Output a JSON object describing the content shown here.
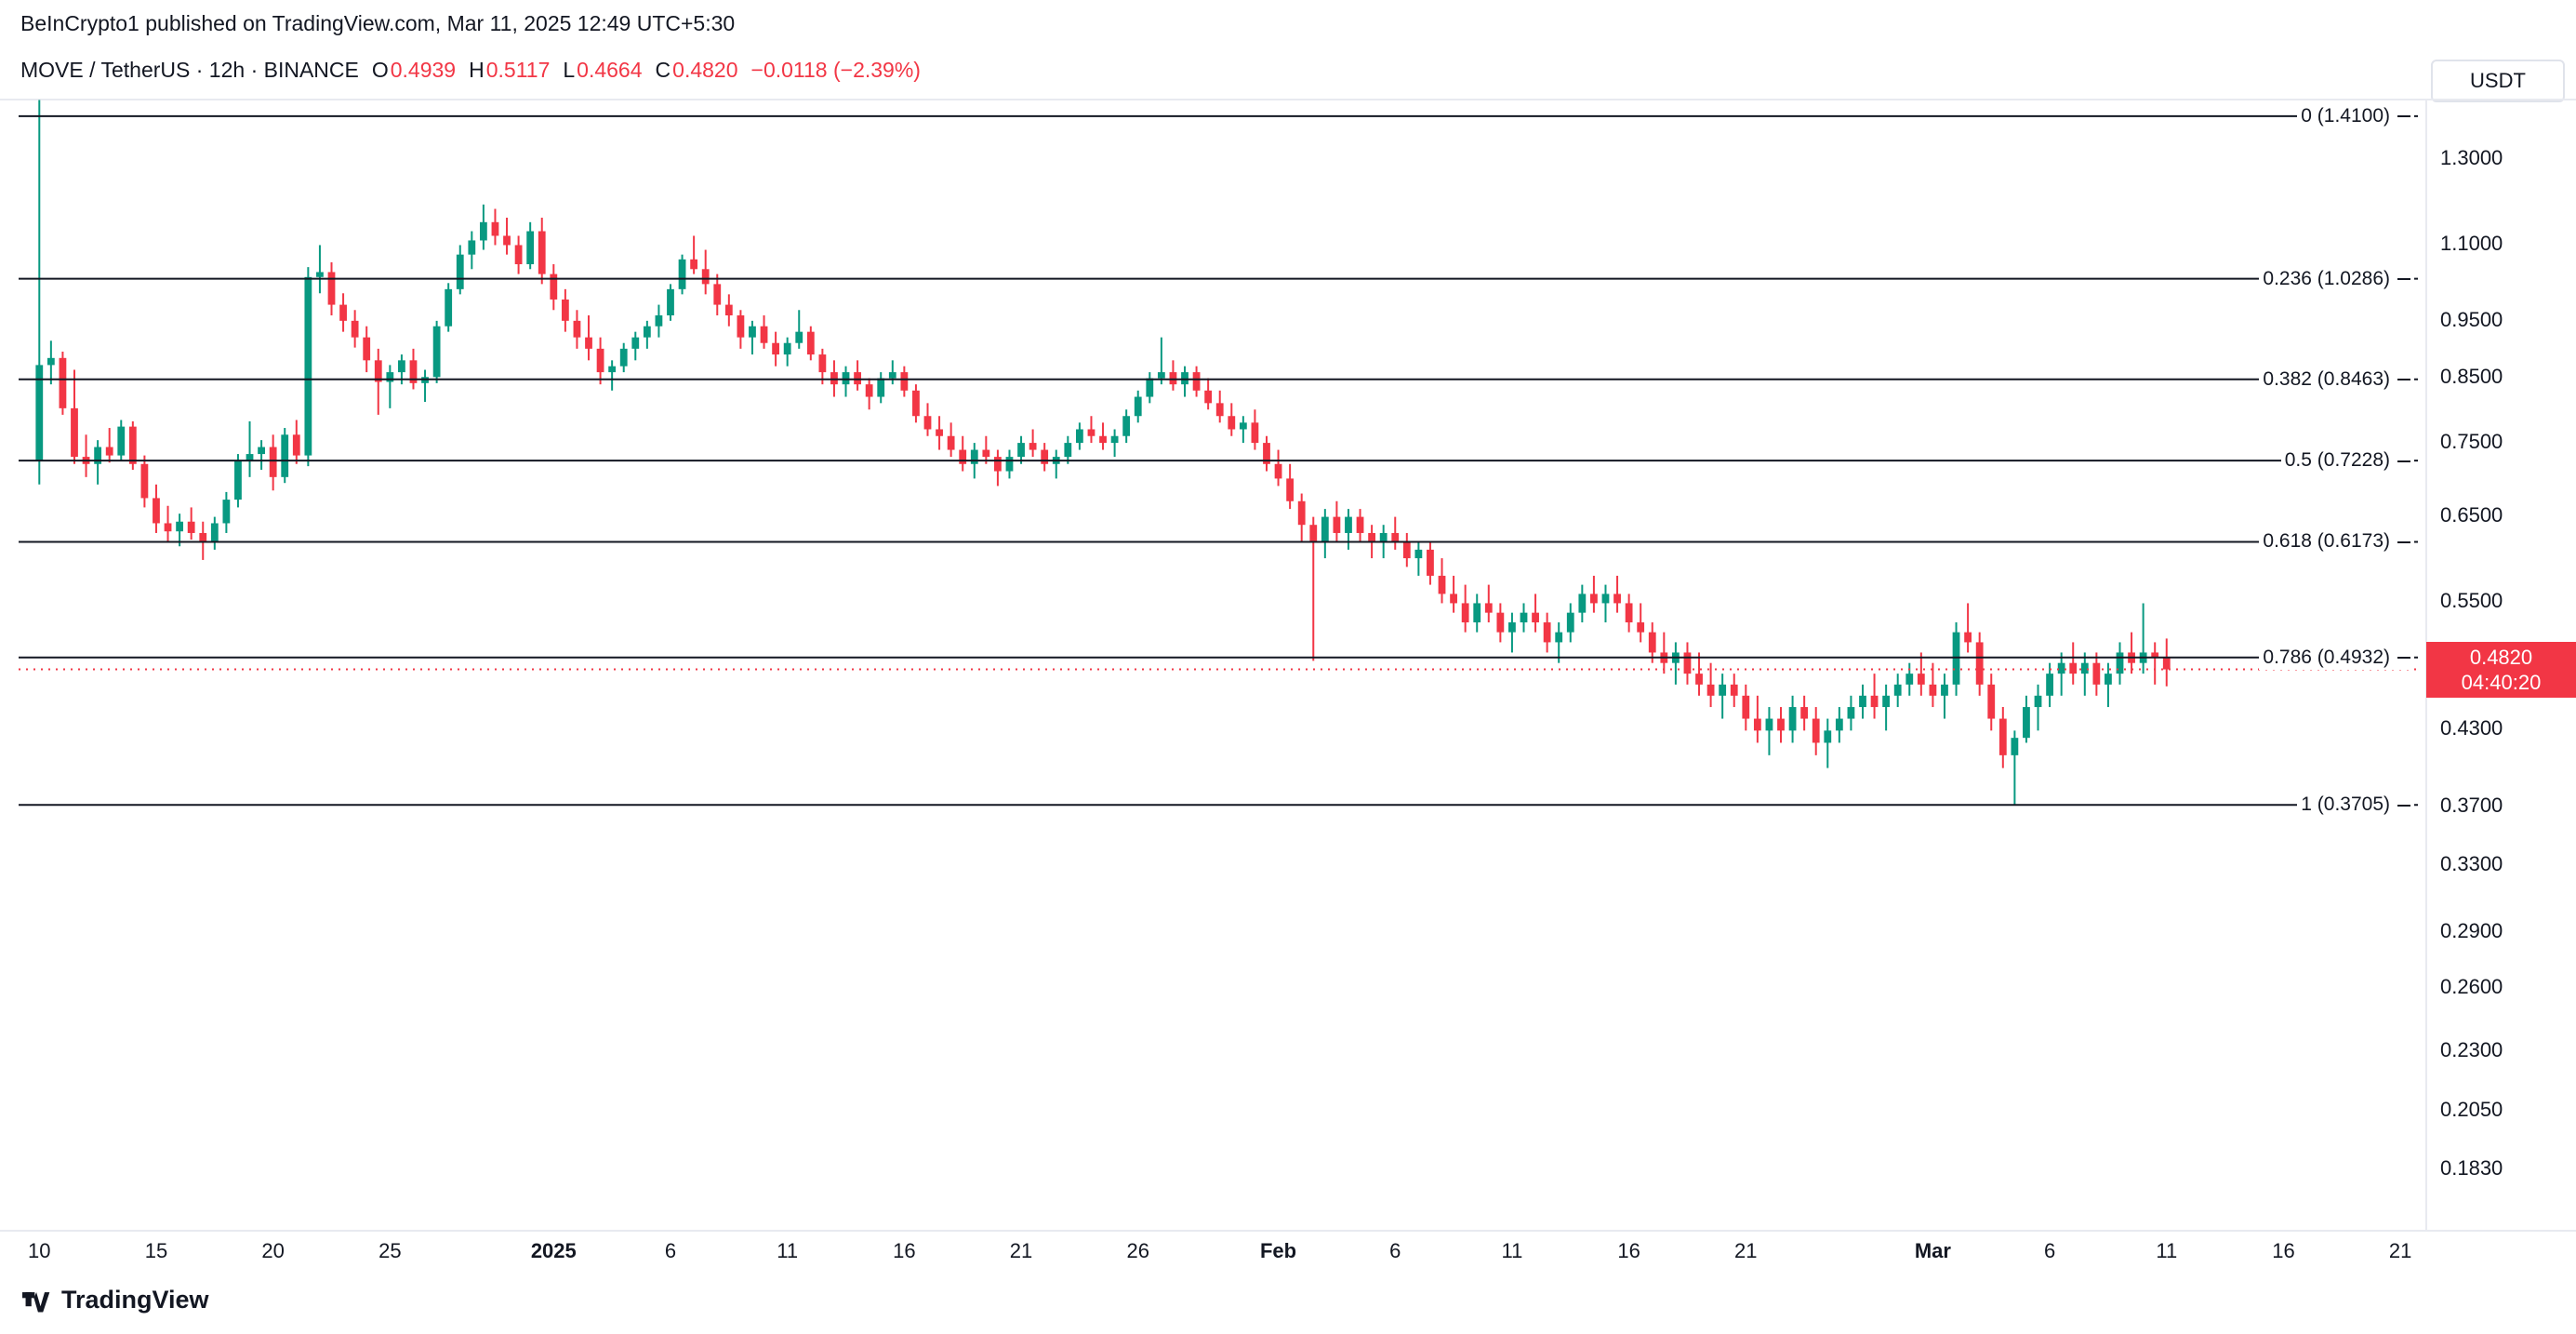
{
  "attribution": "BeInCrypto1 published on TradingView.com, Mar 11, 2025 12:49 UTC+5:30",
  "legend": {
    "title": "MOVE / TetherUS · 12h · BINANCE",
    "o_label": "O",
    "o_value": "0.4939",
    "h_label": "H",
    "h_value": "0.5117",
    "l_label": "L",
    "l_value": "0.4664",
    "c_label": "C",
    "c_value": "0.4820",
    "change": "−0.0118 (−2.39%)"
  },
  "price_axis": {
    "currency": "USDT",
    "current_price": "0.4820",
    "countdown": "04:40:20"
  },
  "footer": {
    "brand": "TradingView"
  },
  "colors": {
    "up": "#089981",
    "down": "#F23645",
    "text": "#131722",
    "fib_line": "#131722",
    "current_price": "#F23645",
    "border": "#E0E3EB"
  },
  "chart_data": {
    "type": "candlestick",
    "title": "MOVE / TetherUS · 12h · BINANCE",
    "scale": "log",
    "y_domain": [
      0.166,
      1.557
    ],
    "first_candle_date": "2024-12-10",
    "interval": "12h",
    "x_slots": 204,
    "current_price": 0.482,
    "y_ticks": [
      {
        "label": "1.3000",
        "value": 1.3
      },
      {
        "label": "1.1000",
        "value": 1.1
      },
      {
        "label": "0.9500",
        "value": 0.95
      },
      {
        "label": "0.8500",
        "value": 0.85
      },
      {
        "label": "0.7500",
        "value": 0.75
      },
      {
        "label": "0.6500",
        "value": 0.65
      },
      {
        "label": "0.5500",
        "value": 0.55
      },
      {
        "label": "0.4300",
        "value": 0.43
      },
      {
        "label": "0.3700",
        "value": 0.37
      },
      {
        "label": "0.3300",
        "value": 0.33
      },
      {
        "label": "0.2900",
        "value": 0.29
      },
      {
        "label": "0.2600",
        "value": 0.26
      },
      {
        "label": "0.2300",
        "value": 0.23
      },
      {
        "label": "0.2050",
        "value": 0.205
      },
      {
        "label": "0.1830",
        "value": 0.183
      }
    ],
    "x_ticks": [
      {
        "label": "10",
        "slot": 0,
        "bold": false
      },
      {
        "label": "15",
        "slot": 10,
        "bold": false
      },
      {
        "label": "20",
        "slot": 20,
        "bold": false
      },
      {
        "label": "25",
        "slot": 30,
        "bold": false
      },
      {
        "label": "2025",
        "slot": 44,
        "bold": true
      },
      {
        "label": "6",
        "slot": 54,
        "bold": false
      },
      {
        "label": "11",
        "slot": 64,
        "bold": false
      },
      {
        "label": "16",
        "slot": 74,
        "bold": false
      },
      {
        "label": "21",
        "slot": 84,
        "bold": false
      },
      {
        "label": "26",
        "slot": 94,
        "bold": false
      },
      {
        "label": "Feb",
        "slot": 106,
        "bold": true
      },
      {
        "label": "6",
        "slot": 116,
        "bold": false
      },
      {
        "label": "11",
        "slot": 126,
        "bold": false
      },
      {
        "label": "16",
        "slot": 136,
        "bold": false
      },
      {
        "label": "21",
        "slot": 146,
        "bold": false
      },
      {
        "label": "Mar",
        "slot": 162,
        "bold": true
      },
      {
        "label": "6",
        "slot": 172,
        "bold": false
      },
      {
        "label": "11",
        "slot": 182,
        "bold": false
      },
      {
        "label": "16",
        "slot": 192,
        "bold": false
      },
      {
        "label": "21",
        "slot": 202,
        "bold": false
      }
    ],
    "fib_levels": [
      {
        "label": "0 (1.4100)",
        "value": 1.41
      },
      {
        "label": "0.236 (1.0286)",
        "value": 1.0286
      },
      {
        "label": "0.382 (0.8463)",
        "value": 0.8463
      },
      {
        "label": "0.5 (0.7228)",
        "value": 0.7228
      },
      {
        "label": "0.618 (0.6173)",
        "value": 0.6173
      },
      {
        "label": "0.786 (0.4932)",
        "value": 0.4932
      },
      {
        "label": "1 (0.3705)",
        "value": 0.3705
      }
    ],
    "candles": [
      [
        0.723,
        1.455,
        0.69,
        0.87
      ],
      [
        0.87,
        0.912,
        0.838,
        0.882
      ],
      [
        0.882,
        0.893,
        0.79,
        0.8
      ],
      [
        0.8,
        0.862,
        0.718,
        0.728
      ],
      [
        0.728,
        0.76,
        0.7,
        0.718
      ],
      [
        0.718,
        0.752,
        0.69,
        0.742
      ],
      [
        0.742,
        0.77,
        0.72,
        0.73
      ],
      [
        0.73,
        0.782,
        0.722,
        0.772
      ],
      [
        0.772,
        0.78,
        0.71,
        0.718
      ],
      [
        0.718,
        0.73,
        0.66,
        0.672
      ],
      [
        0.672,
        0.69,
        0.628,
        0.64
      ],
      [
        0.64,
        0.662,
        0.618,
        0.63
      ],
      [
        0.63,
        0.652,
        0.612,
        0.642
      ],
      [
        0.642,
        0.66,
        0.62,
        0.628
      ],
      [
        0.628,
        0.642,
        0.596,
        0.618
      ],
      [
        0.618,
        0.648,
        0.608,
        0.64
      ],
      [
        0.64,
        0.68,
        0.628,
        0.67
      ],
      [
        0.67,
        0.732,
        0.66,
        0.722
      ],
      [
        0.722,
        0.78,
        0.7,
        0.732
      ],
      [
        0.732,
        0.752,
        0.71,
        0.742
      ],
      [
        0.742,
        0.76,
        0.682,
        0.7
      ],
      [
        0.7,
        0.77,
        0.692,
        0.76
      ],
      [
        0.76,
        0.782,
        0.718,
        0.73
      ],
      [
        0.73,
        1.052,
        0.715,
        1.032
      ],
      [
        1.032,
        1.098,
        1.0,
        1.042
      ],
      [
        1.042,
        1.062,
        0.958,
        0.978
      ],
      [
        0.978,
        1.0,
        0.928,
        0.948
      ],
      [
        0.948,
        0.968,
        0.9,
        0.918
      ],
      [
        0.918,
        0.938,
        0.858,
        0.878
      ],
      [
        0.878,
        0.898,
        0.79,
        0.842
      ],
      [
        0.842,
        0.87,
        0.8,
        0.858
      ],
      [
        0.858,
        0.888,
        0.838,
        0.878
      ],
      [
        0.878,
        0.898,
        0.83,
        0.84
      ],
      [
        0.84,
        0.862,
        0.81,
        0.85
      ],
      [
        0.85,
        0.948,
        0.84,
        0.938
      ],
      [
        0.938,
        1.02,
        0.928,
        1.008
      ],
      [
        1.008,
        1.098,
        0.998,
        1.078
      ],
      [
        1.078,
        1.128,
        1.048,
        1.108
      ],
      [
        1.108,
        1.188,
        1.088,
        1.148
      ],
      [
        1.148,
        1.178,
        1.098,
        1.118
      ],
      [
        1.118,
        1.158,
        1.078,
        1.098
      ],
      [
        1.098,
        1.118,
        1.038,
        1.058
      ],
      [
        1.058,
        1.148,
        1.048,
        1.128
      ],
      [
        1.128,
        1.158,
        1.018,
        1.038
      ],
      [
        1.038,
        1.058,
        0.968,
        0.988
      ],
      [
        0.988,
        1.008,
        0.928,
        0.948
      ],
      [
        0.948,
        0.968,
        0.898,
        0.918
      ],
      [
        0.918,
        0.958,
        0.878,
        0.898
      ],
      [
        0.898,
        0.918,
        0.838,
        0.858
      ],
      [
        0.858,
        0.878,
        0.828,
        0.868
      ],
      [
        0.868,
        0.908,
        0.858,
        0.898
      ],
      [
        0.898,
        0.928,
        0.878,
        0.918
      ],
      [
        0.918,
        0.948,
        0.898,
        0.938
      ],
      [
        0.938,
        0.978,
        0.918,
        0.958
      ],
      [
        0.958,
        1.018,
        0.948,
        1.008
      ],
      [
        1.008,
        1.078,
        0.998,
        1.068
      ],
      [
        1.068,
        1.118,
        1.038,
        1.048
      ],
      [
        1.048,
        1.088,
        0.998,
        1.018
      ],
      [
        1.018,
        1.038,
        0.958,
        0.978
      ],
      [
        0.978,
        0.998,
        0.938,
        0.958
      ],
      [
        0.958,
        0.968,
        0.898,
        0.918
      ],
      [
        0.918,
        0.948,
        0.888,
        0.938
      ],
      [
        0.938,
        0.958,
        0.898,
        0.908
      ],
      [
        0.908,
        0.928,
        0.868,
        0.888
      ],
      [
        0.888,
        0.918,
        0.868,
        0.908
      ],
      [
        0.908,
        0.968,
        0.898,
        0.928
      ],
      [
        0.928,
        0.938,
        0.878,
        0.888
      ],
      [
        0.888,
        0.898,
        0.838,
        0.858
      ],
      [
        0.858,
        0.878,
        0.818,
        0.838
      ],
      [
        0.838,
        0.868,
        0.818,
        0.858
      ],
      [
        0.858,
        0.878,
        0.828,
        0.838
      ],
      [
        0.838,
        0.848,
        0.798,
        0.818
      ],
      [
        0.818,
        0.858,
        0.808,
        0.848
      ],
      [
        0.848,
        0.878,
        0.838,
        0.858
      ],
      [
        0.858,
        0.868,
        0.818,
        0.828
      ],
      [
        0.828,
        0.838,
        0.778,
        0.788
      ],
      [
        0.788,
        0.808,
        0.758,
        0.768
      ],
      [
        0.768,
        0.788,
        0.738,
        0.758
      ],
      [
        0.758,
        0.778,
        0.728,
        0.738
      ],
      [
        0.738,
        0.758,
        0.708,
        0.718
      ],
      [
        0.718,
        0.748,
        0.698,
        0.738
      ],
      [
        0.738,
        0.758,
        0.718,
        0.728
      ],
      [
        0.728,
        0.738,
        0.688,
        0.708
      ],
      [
        0.708,
        0.738,
        0.698,
        0.728
      ],
      [
        0.728,
        0.758,
        0.718,
        0.748
      ],
      [
        0.748,
        0.768,
        0.728,
        0.738
      ],
      [
        0.738,
        0.748,
        0.708,
        0.718
      ],
      [
        0.718,
        0.738,
        0.698,
        0.728
      ],
      [
        0.728,
        0.758,
        0.718,
        0.748
      ],
      [
        0.748,
        0.778,
        0.738,
        0.768
      ],
      [
        0.768,
        0.788,
        0.748,
        0.758
      ],
      [
        0.758,
        0.778,
        0.738,
        0.748
      ],
      [
        0.748,
        0.768,
        0.728,
        0.758
      ],
      [
        0.758,
        0.798,
        0.748,
        0.788
      ],
      [
        0.788,
        0.828,
        0.778,
        0.818
      ],
      [
        0.818,
        0.858,
        0.808,
        0.848
      ],
      [
        0.848,
        0.918,
        0.838,
        0.858
      ],
      [
        0.858,
        0.878,
        0.828,
        0.838
      ],
      [
        0.838,
        0.868,
        0.818,
        0.858
      ],
      [
        0.858,
        0.868,
        0.818,
        0.828
      ],
      [
        0.828,
        0.848,
        0.798,
        0.808
      ],
      [
        0.808,
        0.828,
        0.778,
        0.788
      ],
      [
        0.788,
        0.808,
        0.758,
        0.768
      ],
      [
        0.768,
        0.788,
        0.748,
        0.778
      ],
      [
        0.778,
        0.798,
        0.738,
        0.748
      ],
      [
        0.748,
        0.758,
        0.708,
        0.718
      ],
      [
        0.718,
        0.738,
        0.688,
        0.698
      ],
      [
        0.698,
        0.718,
        0.658,
        0.668
      ],
      [
        0.668,
        0.678,
        0.618,
        0.638
      ],
      [
        0.638,
        0.648,
        0.49,
        0.618
      ],
      [
        0.618,
        0.658,
        0.598,
        0.648
      ],
      [
        0.648,
        0.668,
        0.618,
        0.628
      ],
      [
        0.628,
        0.658,
        0.608,
        0.648
      ],
      [
        0.648,
        0.658,
        0.618,
        0.628
      ],
      [
        0.628,
        0.638,
        0.598,
        0.618
      ],
      [
        0.618,
        0.638,
        0.598,
        0.628
      ],
      [
        0.628,
        0.648,
        0.608,
        0.618
      ],
      [
        0.618,
        0.628,
        0.588,
        0.598
      ],
      [
        0.598,
        0.618,
        0.578,
        0.608
      ],
      [
        0.608,
        0.618,
        0.568,
        0.578
      ],
      [
        0.578,
        0.598,
        0.548,
        0.558
      ],
      [
        0.558,
        0.578,
        0.538,
        0.548
      ],
      [
        0.548,
        0.568,
        0.518,
        0.528
      ],
      [
        0.528,
        0.558,
        0.518,
        0.548
      ],
      [
        0.548,
        0.568,
        0.528,
        0.538
      ],
      [
        0.538,
        0.548,
        0.508,
        0.518
      ],
      [
        0.518,
        0.538,
        0.498,
        0.528
      ],
      [
        0.528,
        0.548,
        0.518,
        0.538
      ],
      [
        0.538,
        0.558,
        0.518,
        0.528
      ],
      [
        0.528,
        0.538,
        0.498,
        0.508
      ],
      [
        0.508,
        0.528,
        0.488,
        0.518
      ],
      [
        0.518,
        0.548,
        0.508,
        0.538
      ],
      [
        0.538,
        0.568,
        0.528,
        0.558
      ],
      [
        0.558,
        0.578,
        0.538,
        0.548
      ],
      [
        0.548,
        0.568,
        0.528,
        0.558
      ],
      [
        0.558,
        0.578,
        0.538,
        0.548
      ],
      [
        0.548,
        0.558,
        0.518,
        0.528
      ],
      [
        0.528,
        0.548,
        0.508,
        0.518
      ],
      [
        0.518,
        0.528,
        0.488,
        0.498
      ],
      [
        0.498,
        0.518,
        0.478,
        0.488
      ],
      [
        0.488,
        0.508,
        0.468,
        0.498
      ],
      [
        0.498,
        0.508,
        0.468,
        0.478
      ],
      [
        0.478,
        0.498,
        0.458,
        0.468
      ],
      [
        0.468,
        0.488,
        0.448,
        0.458
      ],
      [
        0.458,
        0.478,
        0.438,
        0.468
      ],
      [
        0.468,
        0.478,
        0.448,
        0.458
      ],
      [
        0.458,
        0.468,
        0.428,
        0.438
      ],
      [
        0.438,
        0.458,
        0.418,
        0.428
      ],
      [
        0.428,
        0.448,
        0.408,
        0.438
      ],
      [
        0.438,
        0.448,
        0.418,
        0.428
      ],
      [
        0.428,
        0.458,
        0.418,
        0.448
      ],
      [
        0.448,
        0.458,
        0.428,
        0.438
      ],
      [
        0.438,
        0.448,
        0.408,
        0.418
      ],
      [
        0.418,
        0.438,
        0.398,
        0.428
      ],
      [
        0.428,
        0.448,
        0.418,
        0.438
      ],
      [
        0.438,
        0.458,
        0.428,
        0.448
      ],
      [
        0.448,
        0.468,
        0.438,
        0.458
      ],
      [
        0.458,
        0.478,
        0.438,
        0.448
      ],
      [
        0.448,
        0.468,
        0.428,
        0.458
      ],
      [
        0.458,
        0.478,
        0.448,
        0.468
      ],
      [
        0.468,
        0.488,
        0.458,
        0.478
      ],
      [
        0.478,
        0.498,
        0.458,
        0.468
      ],
      [
        0.468,
        0.488,
        0.448,
        0.458
      ],
      [
        0.458,
        0.478,
        0.438,
        0.468
      ],
      [
        0.468,
        0.528,
        0.458,
        0.518
      ],
      [
        0.518,
        0.548,
        0.498,
        0.508
      ],
      [
        0.508,
        0.518,
        0.458,
        0.468
      ],
      [
        0.468,
        0.478,
        0.428,
        0.438
      ],
      [
        0.438,
        0.448,
        0.398,
        0.408
      ],
      [
        0.408,
        0.428,
        0.3705,
        0.422
      ],
      [
        0.422,
        0.458,
        0.418,
        0.448
      ],
      [
        0.448,
        0.468,
        0.428,
        0.458
      ],
      [
        0.458,
        0.488,
        0.448,
        0.478
      ],
      [
        0.478,
        0.498,
        0.458,
        0.488
      ],
      [
        0.488,
        0.508,
        0.468,
        0.478
      ],
      [
        0.478,
        0.498,
        0.458,
        0.488
      ],
      [
        0.488,
        0.498,
        0.458,
        0.468
      ],
      [
        0.468,
        0.488,
        0.448,
        0.478
      ],
      [
        0.478,
        0.508,
        0.468,
        0.498
      ],
      [
        0.498,
        0.518,
        0.478,
        0.488
      ],
      [
        0.488,
        0.548,
        0.478,
        0.498
      ],
      [
        0.498,
        0.508,
        0.468,
        0.4939
      ],
      [
        0.4939,
        0.5117,
        0.4664,
        0.482
      ]
    ]
  }
}
